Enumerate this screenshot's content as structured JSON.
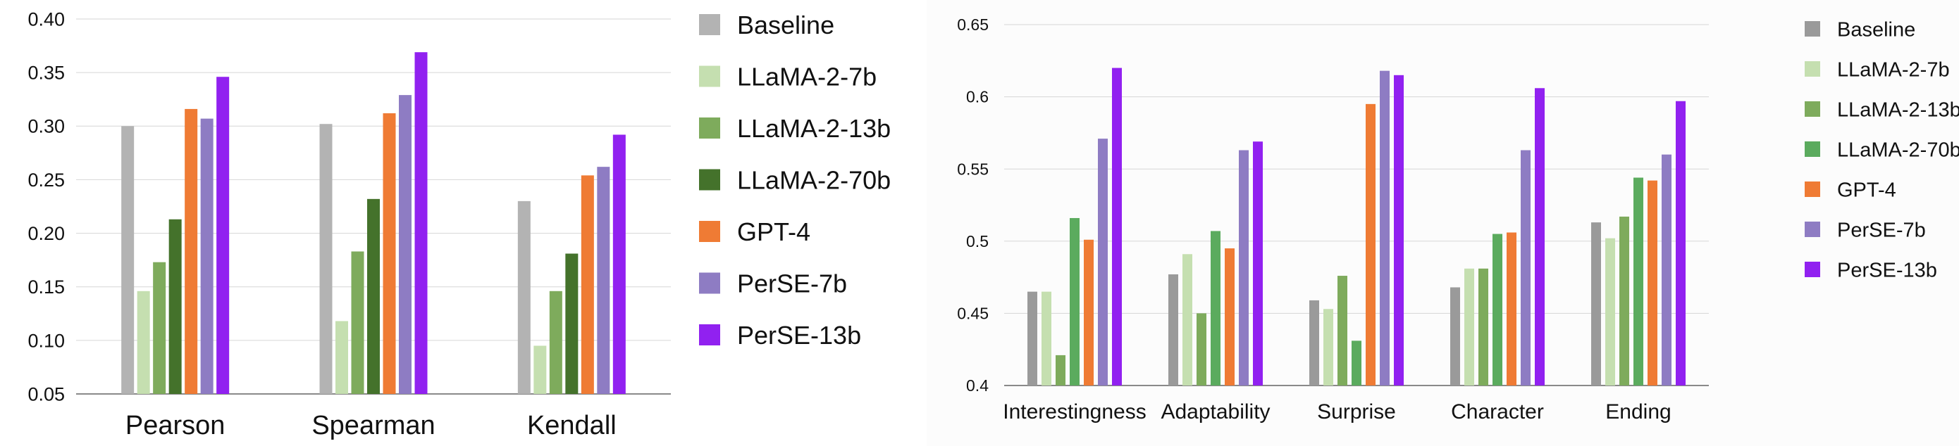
{
  "chart_data": [
    {
      "type": "bar",
      "title": "",
      "xlabel": "",
      "ylabel": "",
      "categories": [
        "Pearson",
        "Spearman",
        "Kendall"
      ],
      "ylim": [
        0.05,
        0.4
      ],
      "yticks": [
        "0.05",
        "0.10",
        "0.15",
        "0.20",
        "0.25",
        "0.30",
        "0.35",
        "0.40"
      ],
      "grid": true,
      "legend_position": "right",
      "series": [
        {
          "name": "Baseline",
          "color": "#b3b3b3",
          "values": [
            0.3,
            0.302,
            0.23
          ]
        },
        {
          "name": "LLaMA-2-7b",
          "color": "#c5dfb0",
          "values": [
            0.146,
            0.118,
            0.095
          ]
        },
        {
          "name": "LLaMA-2-13b",
          "color": "#7eab5c",
          "values": [
            0.173,
            0.183,
            0.146
          ]
        },
        {
          "name": "LLaMA-2-70b",
          "color": "#44722b",
          "values": [
            0.213,
            0.232,
            0.181
          ]
        },
        {
          "name": "GPT-4",
          "color": "#ef7b34",
          "values": [
            0.316,
            0.312,
            0.254
          ]
        },
        {
          "name": "PerSE-7b",
          "color": "#8e7cc3",
          "values": [
            0.307,
            0.329,
            0.262
          ]
        },
        {
          "name": "PerSE-13b",
          "color": "#9121f0",
          "values": [
            0.346,
            0.369,
            0.292
          ]
        }
      ]
    },
    {
      "type": "bar",
      "title": "",
      "xlabel": "",
      "ylabel": "",
      "categories": [
        "Interestingness",
        "Adaptability",
        "Surprise",
        "Character",
        "Ending"
      ],
      "ylim": [
        0.4,
        0.65
      ],
      "yticks": [
        "0.4",
        "0.45",
        "0.5",
        "0.55",
        "0.6",
        "0.65"
      ],
      "grid": true,
      "legend_position": "right",
      "series": [
        {
          "name": "Baseline",
          "color": "#9a9a9a",
          "values": [
            0.465,
            0.477,
            0.459,
            0.468,
            0.513
          ]
        },
        {
          "name": "LLaMA-2-7b",
          "color": "#c5dfb0",
          "values": [
            0.465,
            0.491,
            0.453,
            0.481,
            0.502
          ]
        },
        {
          "name": "LLaMA-2-13b",
          "color": "#7eab5c",
          "values": [
            0.421,
            0.45,
            0.476,
            0.481,
            0.517
          ]
        },
        {
          "name": "LLaMA-2-70b",
          "color": "#5bab5e",
          "values": [
            0.516,
            0.507,
            0.431,
            0.505,
            0.544
          ]
        },
        {
          "name": "GPT-4",
          "color": "#ef7b34",
          "values": [
            0.501,
            0.495,
            0.595,
            0.506,
            0.542
          ]
        },
        {
          "name": "PerSE-7b",
          "color": "#8e7cc3",
          "values": [
            0.571,
            0.563,
            0.618,
            0.563,
            0.56
          ]
        },
        {
          "name": "PerSE-13b",
          "color": "#9121f0",
          "values": [
            0.62,
            0.569,
            0.615,
            0.606,
            0.597
          ]
        }
      ]
    }
  ]
}
